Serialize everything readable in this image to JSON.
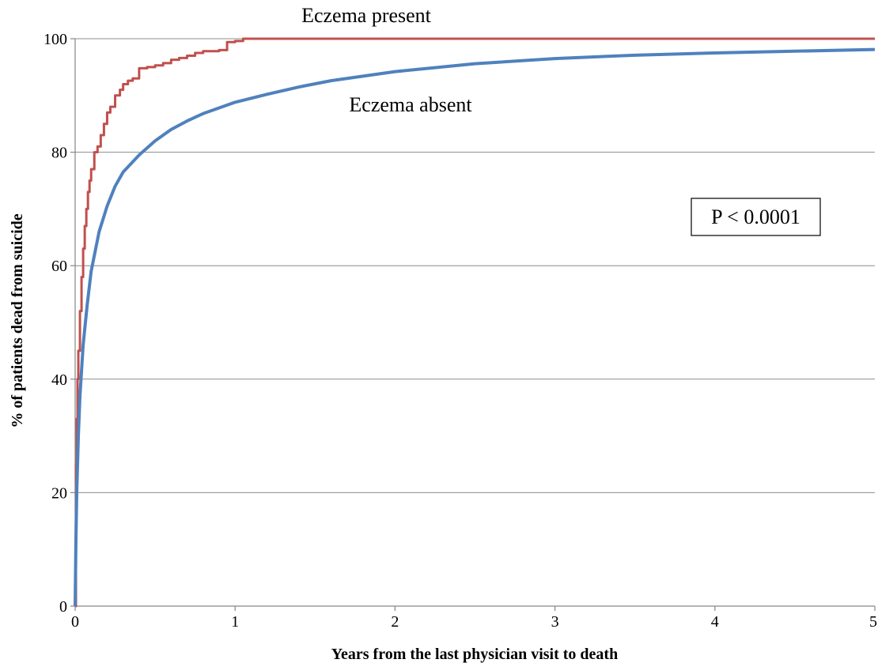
{
  "chart_data": {
    "type": "line",
    "xlabel": "Years from the last physician visit to death",
    "ylabel": "% of patients dead from suicide",
    "xlim": [
      0,
      5
    ],
    "ylim": [
      0,
      100
    ],
    "x_ticks": [
      "0",
      "1",
      "2",
      "3",
      "4",
      "5"
    ],
    "y_ticks": [
      "0",
      "20",
      "40",
      "60",
      "80",
      "100"
    ],
    "grid": "horizontal",
    "annotation": "P < 0.0001",
    "series": [
      {
        "name": "Eczema present",
        "color": "#c0504d",
        "step": true,
        "x": [
          0,
          0.005,
          0.01,
          0.015,
          0.02,
          0.03,
          0.04,
          0.05,
          0.06,
          0.07,
          0.08,
          0.09,
          0.1,
          0.12,
          0.14,
          0.16,
          0.18,
          0.2,
          0.22,
          0.25,
          0.28,
          0.3,
          0.33,
          0.36,
          0.4,
          0.45,
          0.5,
          0.55,
          0.6,
          0.65,
          0.7,
          0.75,
          0.8,
          0.85,
          0.9,
          0.95,
          1.0,
          1.05,
          1.1,
          5.0
        ],
        "y": [
          0,
          25,
          33,
          40,
          45,
          52,
          58,
          63,
          67,
          70,
          73,
          75,
          77,
          80,
          81,
          83,
          85,
          87,
          88,
          90,
          91,
          92,
          92.6,
          93,
          94.8,
          95,
          95.3,
          95.7,
          96.3,
          96.6,
          97,
          97.5,
          97.8,
          97.8,
          98,
          99.4,
          99.6,
          100,
          100,
          100
        ]
      },
      {
        "name": "Eczema absent",
        "color": "#4f81bd",
        "step": false,
        "x": [
          0,
          0.005,
          0.01,
          0.02,
          0.03,
          0.05,
          0.075,
          0.1,
          0.15,
          0.2,
          0.25,
          0.3,
          0.4,
          0.5,
          0.6,
          0.7,
          0.8,
          1.0,
          1.2,
          1.4,
          1.6,
          1.8,
          2.0,
          2.5,
          3.0,
          3.5,
          4.0,
          4.5,
          5.0
        ],
        "y": [
          0,
          12,
          20,
          30,
          37,
          46,
          53,
          59,
          66,
          70.5,
          74,
          76.5,
          79.5,
          82,
          84,
          85.5,
          86.8,
          88.8,
          90.2,
          91.5,
          92.6,
          93.4,
          94.2,
          95.6,
          96.5,
          97.1,
          97.5,
          97.8,
          98.1
        ]
      }
    ]
  }
}
